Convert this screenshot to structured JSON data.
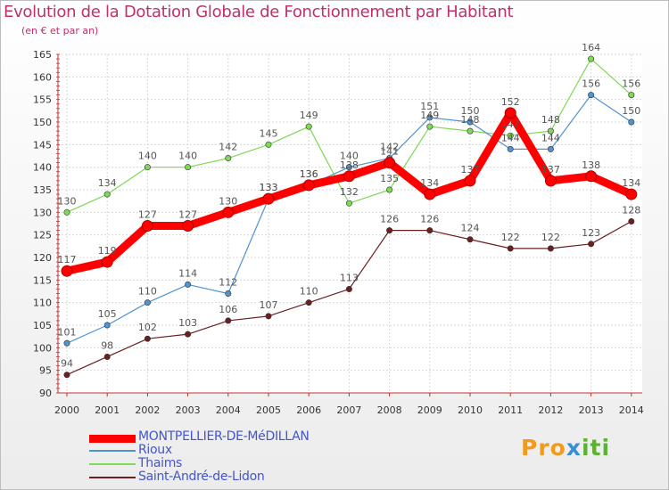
{
  "title": "Evolution de la Dotation Globale de Fonctionnement par Habitant",
  "subtitle": "(en € et par an)",
  "logo": {
    "part1": "Pro",
    "part2": "x",
    "part3": "iti"
  },
  "chart_data": {
    "type": "line",
    "title": "Evolution de la Dotation Globale de Fonctionnement par Habitant",
    "ylabel": "(en € et par an)",
    "xlabel": "",
    "ylim": [
      90,
      165
    ],
    "yticks": [
      90,
      95,
      100,
      105,
      110,
      115,
      120,
      125,
      130,
      135,
      140,
      145,
      150,
      155,
      160,
      165
    ],
    "grid": true,
    "legend": "bottom-left",
    "categories": [
      "2000",
      "2001",
      "2002",
      "2003",
      "2004",
      "2005",
      "2006",
      "2007",
      "2008",
      "2009",
      "2010",
      "2011",
      "2012",
      "2013",
      "2014"
    ],
    "series": [
      {
        "name": "MONTPELLIER-DE-MéDILLAN",
        "color": "#ff0000",
        "values": [
          117,
          119,
          127,
          127,
          130,
          133,
          136,
          138,
          141,
          134,
          137,
          152,
          137,
          138,
          134
        ]
      },
      {
        "name": "Rioux",
        "color": "#4f93d2",
        "values": [
          101,
          105,
          110,
          114,
          112,
          133,
          136,
          140,
          142,
          151,
          150,
          144,
          144,
          156,
          150
        ]
      },
      {
        "name": "Thaims",
        "color": "#7fd856",
        "values": [
          130,
          134,
          140,
          140,
          142,
          145,
          149,
          132,
          135,
          149,
          148,
          147,
          148,
          164,
          156
        ]
      },
      {
        "name": "Saint-André-de-Lidon",
        "color": "#6b2020",
        "values": [
          94,
          98,
          102,
          103,
          106,
          107,
          110,
          113,
          126,
          126,
          124,
          122,
          122,
          123,
          128
        ]
      }
    ]
  }
}
